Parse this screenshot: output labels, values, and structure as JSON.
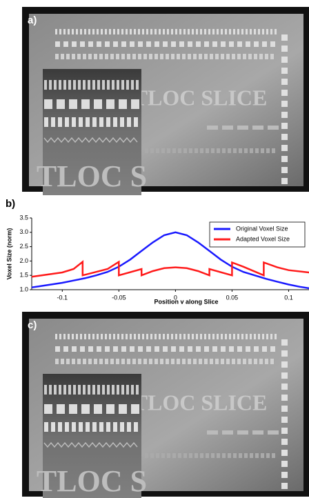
{
  "panels": [
    {
      "label": "a)",
      "image_text": "TLOC SLICE",
      "inset_text": "TLOC S"
    },
    {
      "label": "c)",
      "image_text": "TLOC SLICE",
      "inset_text": "TLOC S"
    }
  ],
  "chart_data": {
    "type": "line",
    "panel_label": "b)",
    "xlabel": "Position v along Slice",
    "ylabel": "Voxel Size (norm)",
    "xlim": [
      -0.127,
      0.118
    ],
    "ylim": [
      1,
      3.5
    ],
    "xticks": [
      -0.1,
      -0.05,
      0,
      0.05,
      0.1
    ],
    "yticks": [
      {
        "value": 1,
        "label": "1.0"
      },
      1.5,
      {
        "value": 2,
        "label": "2.0"
      },
      2.5,
      {
        "value": 3,
        "label": "3.0"
      },
      3.5
    ],
    "legend": "upper right",
    "series": [
      {
        "name": "Original Voxel Size",
        "color": "#1a1aff",
        "x": [
          -0.127,
          -0.12,
          -0.11,
          -0.1,
          -0.09,
          -0.08,
          -0.07,
          -0.06,
          -0.05,
          -0.04,
          -0.03,
          -0.02,
          -0.01,
          0,
          0.01,
          0.02,
          0.03,
          0.04,
          0.05,
          0.06,
          0.07,
          0.08,
          0.09,
          0.1,
          0.11,
          0.118
        ],
        "values": [
          1.08,
          1.12,
          1.18,
          1.24,
          1.32,
          1.4,
          1.5,
          1.62,
          1.8,
          2.05,
          2.35,
          2.65,
          2.9,
          3.0,
          2.9,
          2.65,
          2.35,
          2.05,
          1.8,
          1.62,
          1.5,
          1.38,
          1.28,
          1.18,
          1.1,
          1.05
        ]
      },
      {
        "name": "Adapted Voxel Size",
        "color": "#ff1a1a",
        "x": [
          -0.127,
          -0.1,
          -0.09,
          -0.082,
          -0.082,
          -0.06,
          -0.05,
          -0.05,
          -0.03,
          -0.03,
          -0.02,
          -0.01,
          0,
          0.01,
          0.02,
          0.03,
          0.03,
          0.05,
          0.05,
          0.06,
          0.078,
          0.078,
          0.09,
          0.1,
          0.118
        ],
        "values": [
          1.45,
          1.6,
          1.72,
          1.97,
          1.5,
          1.72,
          1.97,
          1.5,
          1.72,
          1.5,
          1.65,
          1.75,
          1.78,
          1.75,
          1.65,
          1.5,
          1.72,
          1.5,
          1.95,
          1.8,
          1.5,
          1.95,
          1.78,
          1.68,
          1.6
        ]
      }
    ]
  }
}
